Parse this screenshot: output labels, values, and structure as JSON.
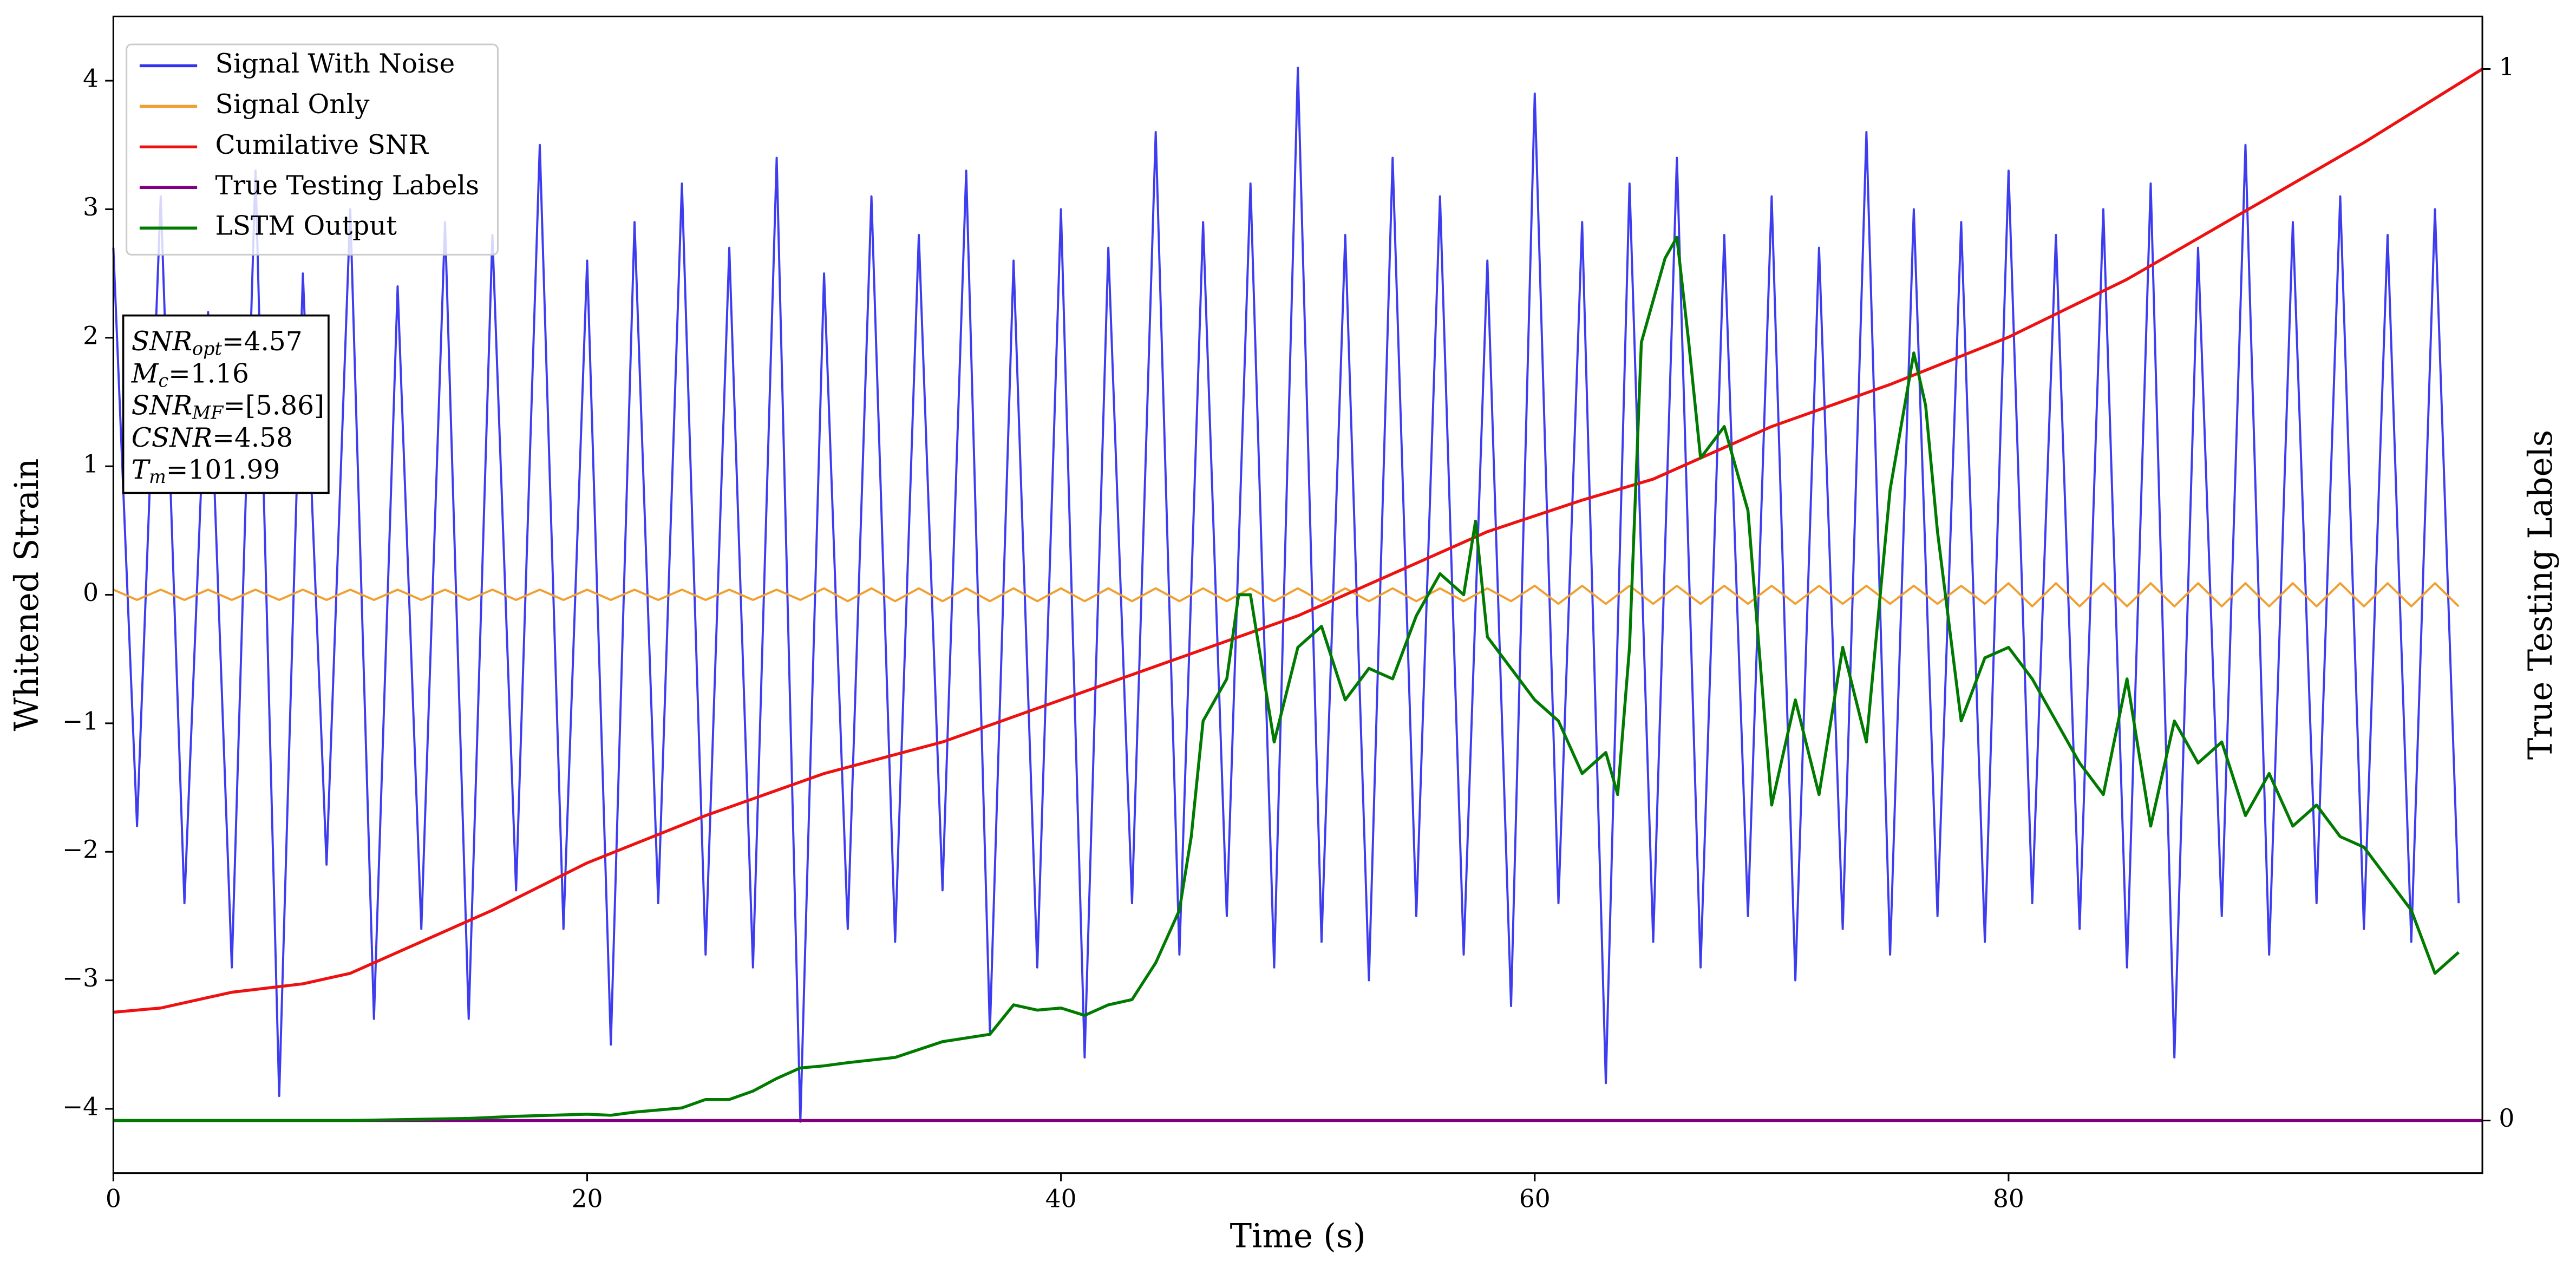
{
  "chart_data": {
    "type": "line",
    "xlabel": "Time (s)",
    "ylabel": "Whitened Strain",
    "y2label": "True Testing Labels",
    "xlim": [
      0,
      100
    ],
    "ylim": [
      -4.5,
      4.5
    ],
    "y2lim": [
      -0.05,
      1.05
    ],
    "xticks": [
      0,
      20,
      40,
      60,
      80
    ],
    "yticks": [
      {
        "value": -4,
        "label": "−4"
      },
      {
        "value": -3,
        "label": "−3"
      },
      {
        "value": -2,
        "label": "−2"
      },
      {
        "value": -1,
        "label": "−1"
      },
      0,
      1,
      2,
      3,
      4
    ],
    "y2ticks": [
      0,
      1
    ],
    "legend": "upper left",
    "annotation": [
      {
        "symbol": "SNR",
        "subscript": "opt",
        "text": "=4.57"
      },
      {
        "symbol": "M",
        "subscript": "c",
        "text": "=1.16"
      },
      {
        "symbol": "SNR",
        "subscript": "MF",
        "text": "=[5.86]"
      },
      {
        "symbol": "CSNR",
        "text": "=4.58"
      },
      {
        "symbol": "T",
        "subscript": "m",
        "text": "=101.99"
      }
    ],
    "series": [
      {
        "name": "Signal With Noise",
        "color": "#3333ee",
        "x": [
          0,
          1,
          2,
          3,
          4,
          5,
          6,
          7,
          8,
          9,
          10,
          11,
          12,
          13,
          14,
          15,
          16,
          17,
          18,
          19,
          20,
          21,
          22,
          23,
          24,
          25,
          26,
          27,
          28,
          29,
          30,
          31,
          32,
          33,
          34,
          35,
          36,
          37,
          38,
          39,
          40,
          41,
          42,
          43,
          44,
          45,
          46,
          47,
          48,
          49,
          50,
          51,
          52,
          53,
          54,
          55,
          56,
          57,
          58,
          59,
          60,
          61,
          62,
          63,
          64,
          65,
          66,
          67,
          68,
          69,
          70,
          71,
          72,
          73,
          74,
          75,
          76,
          77,
          78,
          79,
          80,
          81,
          82,
          83,
          84,
          85,
          86,
          87,
          88,
          89,
          90,
          91,
          92,
          93,
          94,
          95,
          96,
          97,
          98,
          99
        ],
        "values": [
          2.7,
          -1.8,
          3.1,
          -2.4,
          2.2,
          -2.9,
          3.3,
          -3.9,
          2.5,
          -2.1,
          3.0,
          -3.3,
          2.4,
          -2.6,
          2.9,
          -3.3,
          2.8,
          -2.3,
          3.5,
          -2.6,
          2.6,
          -3.5,
          2.9,
          -2.4,
          3.2,
          -2.8,
          2.7,
          -2.9,
          3.4,
          -4.1,
          2.5,
          -2.6,
          3.1,
          -2.7,
          2.8,
          -2.3,
          3.3,
          -3.4,
          2.6,
          -2.9,
          3.0,
          -3.6,
          2.7,
          -2.4,
          3.6,
          -2.8,
          2.9,
          -2.5,
          3.2,
          -2.9,
          4.1,
          -2.7,
          2.8,
          -3.0,
          3.4,
          -2.5,
          3.1,
          -2.8,
          2.6,
          -3.2,
          3.9,
          -2.4,
          2.9,
          -3.8,
          3.2,
          -2.7,
          3.4,
          -2.9,
          2.8,
          -2.5,
          3.1,
          -3.0,
          2.7,
          -2.6,
          3.6,
          -2.8,
          3.0,
          -2.5,
          2.9,
          -2.7,
          3.3,
          -2.4,
          2.8,
          -2.6,
          3.0,
          -2.9,
          3.2,
          -3.6,
          2.7,
          -2.5,
          3.5,
          -2.8,
          2.9,
          -2.4,
          3.1,
          -2.6,
          2.8,
          -2.7,
          3.0,
          -2.4
        ]
      },
      {
        "name": "Signal Only",
        "color": "#f0a030",
        "x": [
          0,
          1,
          2,
          3,
          4,
          5,
          6,
          7,
          8,
          9,
          10,
          11,
          12,
          13,
          14,
          15,
          16,
          17,
          18,
          19,
          20,
          21,
          22,
          23,
          24,
          25,
          26,
          27,
          28,
          29,
          30,
          31,
          32,
          33,
          34,
          35,
          36,
          37,
          38,
          39,
          40,
          41,
          42,
          43,
          44,
          45,
          46,
          47,
          48,
          49,
          50,
          51,
          52,
          53,
          54,
          55,
          56,
          57,
          58,
          59,
          60,
          61,
          62,
          63,
          64,
          65,
          66,
          67,
          68,
          69,
          70,
          71,
          72,
          73,
          74,
          75,
          76,
          77,
          78,
          79,
          80,
          81,
          82,
          83,
          84,
          85,
          86,
          87,
          88,
          89,
          90,
          91,
          92,
          93,
          94,
          95,
          96,
          97,
          98,
          99
        ],
        "values": [
          0.04,
          -0.04,
          0.04,
          -0.04,
          0.04,
          -0.04,
          0.04,
          -0.04,
          0.04,
          -0.04,
          0.04,
          -0.04,
          0.04,
          -0.04,
          0.04,
          -0.04,
          0.04,
          -0.04,
          0.04,
          -0.04,
          0.04,
          -0.04,
          0.04,
          -0.04,
          0.04,
          -0.04,
          0.04,
          -0.04,
          0.04,
          -0.04,
          0.05,
          -0.05,
          0.05,
          -0.05,
          0.05,
          -0.05,
          0.05,
          -0.05,
          0.05,
          -0.05,
          0.05,
          -0.05,
          0.05,
          -0.05,
          0.05,
          -0.05,
          0.05,
          -0.05,
          0.05,
          -0.05,
          0.05,
          -0.05,
          0.05,
          -0.05,
          0.05,
          -0.05,
          0.05,
          -0.05,
          0.05,
          -0.05,
          0.07,
          -0.07,
          0.07,
          -0.07,
          0.07,
          -0.07,
          0.07,
          -0.07,
          0.07,
          -0.07,
          0.07,
          -0.07,
          0.07,
          -0.07,
          0.07,
          -0.07,
          0.07,
          -0.07,
          0.07,
          -0.07,
          0.09,
          -0.09,
          0.09,
          -0.09,
          0.09,
          -0.09,
          0.09,
          -0.09,
          0.09,
          -0.09,
          0.09,
          -0.09,
          0.09,
          -0.09,
          0.09,
          -0.09,
          0.09,
          -0.09,
          0.09,
          -0.09
        ]
      },
      {
        "name": "Cumilative SNR",
        "color": "#ee1111",
        "axis": "y2",
        "x": [
          0,
          2,
          5,
          8,
          10,
          13,
          16,
          20,
          25,
          30,
          35,
          40,
          45,
          50,
          55,
          58,
          62,
          65,
          70,
          75,
          80,
          85,
          90,
          95,
          100
        ],
        "values": [
          0.103,
          0.107,
          0.122,
          0.13,
          0.14,
          0.17,
          0.2,
          0.245,
          0.29,
          0.33,
          0.36,
          0.4,
          0.44,
          0.48,
          0.53,
          0.56,
          0.59,
          0.61,
          0.66,
          0.7,
          0.745,
          0.8,
          0.865,
          0.93,
          1.0
        ]
      },
      {
        "name": "True Testing Labels",
        "color": "#800080",
        "axis": "y2",
        "x": [
          0,
          100
        ],
        "values": [
          0,
          0
        ]
      },
      {
        "name": "LSTM Output",
        "color": "#007a00",
        "axis": "y2",
        "x": [
          0,
          10,
          15,
          17,
          20,
          21,
          22,
          24,
          25,
          26,
          27,
          28,
          29,
          30,
          31,
          33,
          35,
          37,
          38,
          39,
          40,
          41,
          42,
          43,
          44,
          45,
          45.5,
          46,
          47,
          47.5,
          48,
          49,
          50,
          51,
          52,
          53,
          54,
          55,
          56,
          57,
          57.5,
          58,
          59,
          60,
          61,
          62,
          63,
          63.5,
          64,
          64.5,
          65,
          65.5,
          66,
          66.5,
          67,
          68,
          69,
          70,
          71,
          72,
          73,
          74,
          75,
          76,
          76.5,
          77,
          78,
          79,
          80,
          81,
          82,
          83,
          84,
          85,
          86,
          87,
          88,
          89,
          90,
          91,
          92,
          93,
          94,
          95,
          96,
          97,
          98,
          99
        ],
        "values": [
          0,
          0,
          0.002,
          0.004,
          0.006,
          0.005,
          0.008,
          0.012,
          0.02,
          0.02,
          0.028,
          0.04,
          0.05,
          0.052,
          0.055,
          0.06,
          0.075,
          0.082,
          0.11,
          0.105,
          0.107,
          0.1,
          0.11,
          0.115,
          0.15,
          0.2,
          0.27,
          0.38,
          0.42,
          0.5,
          0.5,
          0.36,
          0.45,
          0.47,
          0.4,
          0.43,
          0.42,
          0.48,
          0.52,
          0.5,
          0.57,
          0.46,
          0.43,
          0.4,
          0.38,
          0.33,
          0.35,
          0.31,
          0.45,
          0.74,
          0.78,
          0.82,
          0.84,
          0.74,
          0.63,
          0.66,
          0.58,
          0.3,
          0.4,
          0.31,
          0.45,
          0.36,
          0.6,
          0.73,
          0.68,
          0.56,
          0.38,
          0.44,
          0.45,
          0.42,
          0.38,
          0.34,
          0.31,
          0.42,
          0.28,
          0.38,
          0.34,
          0.36,
          0.29,
          0.33,
          0.28,
          0.3,
          0.27,
          0.26,
          0.23,
          0.2,
          0.14,
          0.16
        ]
      }
    ]
  }
}
